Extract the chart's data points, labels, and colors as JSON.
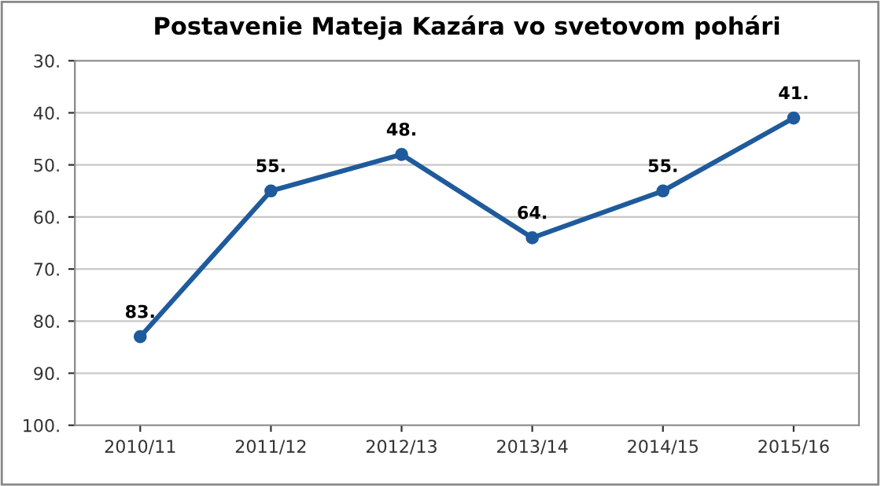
{
  "chart_data": {
    "type": "line",
    "title": "Postavenie Mateja Kazára vo svetovom pohári",
    "categories": [
      "2010/11",
      "2011/12",
      "2012/13",
      "2013/14",
      "2014/15",
      "2015/16"
    ],
    "series": [
      {
        "color": "#1f5b9c",
        "values": [
          83,
          55,
          48,
          64,
          55,
          41
        ],
        "value_labels": [
          "83.",
          "55.",
          "48.",
          "64.",
          "55.",
          "41."
        ]
      }
    ],
    "ylim": [
      100,
      30
    ],
    "yticks": [
      {
        "value": 30,
        "label": "30."
      },
      {
        "value": 40,
        "label": "40."
      },
      {
        "value": 50,
        "label": "50."
      },
      {
        "value": 60,
        "label": "60."
      },
      {
        "value": 70,
        "label": "70."
      },
      {
        "value": 80,
        "label": "80."
      },
      {
        "value": 90,
        "label": "90."
      },
      {
        "value": 100,
        "label": "100."
      }
    ],
    "grid": "y",
    "marker": "circle",
    "line_style": "solid",
    "legend": false
  }
}
